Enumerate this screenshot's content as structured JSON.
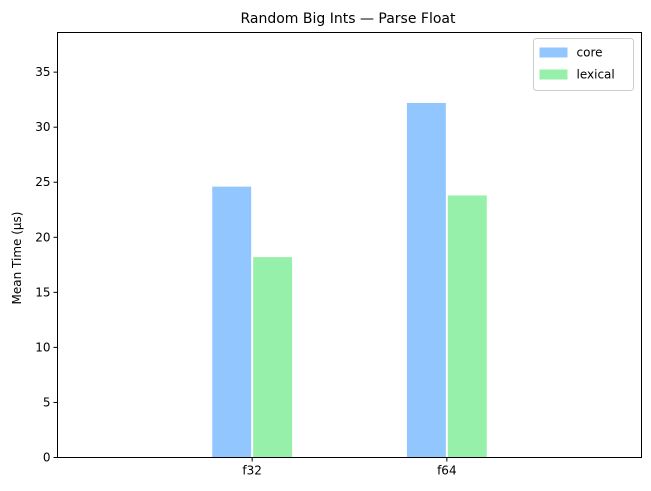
{
  "chart_data": {
    "type": "bar",
    "title": "Random Big Ints — Parse Float",
    "xlabel": "",
    "ylabel": "Mean Time (µs)",
    "categories": [
      "f32",
      "f64"
    ],
    "series": [
      {
        "name": "core",
        "values": [
          24.6,
          32.2
        ],
        "color": "#92c6ff"
      },
      {
        "name": "lexical",
        "values": [
          18.2,
          23.8
        ],
        "color": "#97f0aa"
      }
    ],
    "ylim": [
      0,
      38.6
    ],
    "yticks": [
      0,
      5,
      10,
      15,
      20,
      25,
      30,
      35
    ],
    "grid": false,
    "legend_position": "top-right"
  }
}
